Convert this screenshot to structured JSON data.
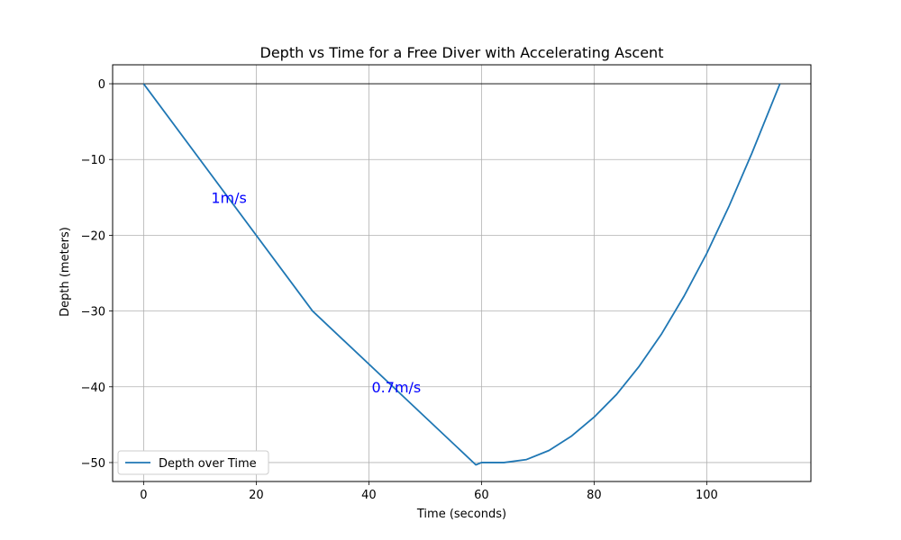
{
  "chart_data": {
    "type": "line",
    "title": "Depth vs Time for a Free Diver with Accelerating Ascent",
    "xlabel": "Time (seconds)",
    "ylabel": "Depth (meters)",
    "xlim": [
      -5.5,
      118.5
    ],
    "ylim": [
      -52.5,
      2.5
    ],
    "xticks": [
      0,
      20,
      40,
      60,
      80,
      100
    ],
    "yticks": [
      0,
      -10,
      -20,
      -30,
      -40,
      -50
    ],
    "xtick_labels": [
      "0",
      "20",
      "40",
      "60",
      "80",
      "100"
    ],
    "ytick_labels": [
      "0",
      "−10",
      "−20",
      "−30",
      "−40",
      "−50"
    ],
    "grid": true,
    "reference_line_y": 0,
    "series": [
      {
        "name": "Depth over Time",
        "color": "#1f77b4",
        "points": [
          [
            0,
            0
          ],
          [
            30,
            -30
          ],
          [
            59,
            -50.3
          ],
          [
            60,
            -50
          ],
          [
            64,
            -50
          ],
          [
            68,
            -49.6
          ],
          [
            72,
            -48.4
          ],
          [
            76,
            -46.5
          ],
          [
            80,
            -44.0
          ],
          [
            84,
            -41.0
          ],
          [
            88,
            -37.3
          ],
          [
            92,
            -33.0
          ],
          [
            96,
            -28.0
          ],
          [
            100,
            -22.4
          ],
          [
            104,
            -16.1
          ],
          [
            108,
            -9.2
          ],
          [
            113,
            0
          ]
        ]
      }
    ],
    "annotations": [
      {
        "text": "1m/s",
        "x": 12,
        "y": -15,
        "color": "#0000ff"
      },
      {
        "text": "0.7m/s",
        "x": 40.5,
        "y": -40,
        "color": "#0000ff"
      }
    ],
    "legend": {
      "placement": "lower-left",
      "entries": [
        "Depth over Time"
      ]
    }
  }
}
